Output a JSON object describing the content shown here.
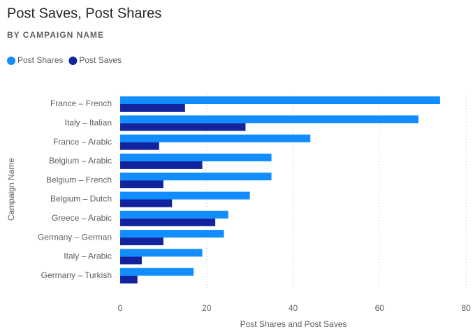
{
  "chart_data": {
    "type": "bar",
    "orientation": "horizontal",
    "title": "Post Saves, Post Shares",
    "subtitle": "BY CAMPAIGN NAME",
    "x_label": "Post Shares and Post Saves",
    "y_label": "Campaign Name",
    "categories": [
      "France – French",
      "Italy – Italian",
      "France – Arabic",
      "Belgium – Arabic",
      "Belgium – French",
      "Belgium – Dutch",
      "Greece – Arabic",
      "Germany – German",
      "Italy – Arabic",
      "Germany – Turkish"
    ],
    "series": [
      {
        "name": "Post Shares",
        "color": "#118dff",
        "values": [
          74,
          69,
          44,
          35,
          35,
          30,
          25,
          24,
          19,
          17
        ]
      },
      {
        "name": "Post Saves",
        "color": "#12239e",
        "values": [
          15,
          29,
          9,
          19,
          10,
          12,
          22,
          10,
          5,
          4
        ]
      }
    ],
    "xlim": [
      0,
      80
    ],
    "xticks": [
      0,
      20,
      40,
      60,
      80
    ],
    "grid": true,
    "legend": "top-left"
  }
}
